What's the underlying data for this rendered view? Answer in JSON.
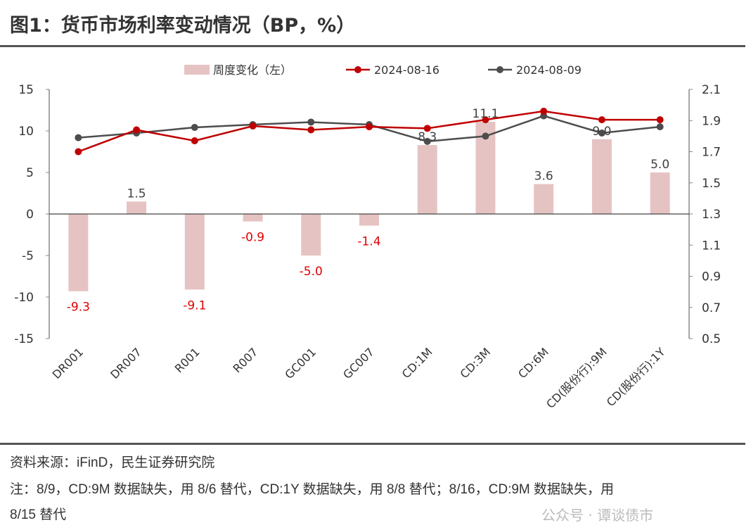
{
  "title": "图1：货币市场利率变动情况（BP，%）",
  "footer": {
    "source": "资料来源：iFinD，民生证券研究院",
    "note": "注：8/9，CD:9M 数据缺失，用 8/6 替代，CD:1Y 数据缺失，用 8/8 替代；8/16，CD:9M 数据缺失，用",
    "note2": "8/15 替代",
    "watermark": "公众号 · 谭谈债市"
  },
  "chart_data": {
    "type": "bar+line",
    "categories": [
      "DR001",
      "DR007",
      "R001",
      "R007",
      "GC001",
      "GC007",
      "CD:1M",
      "CD:3M",
      "CD:6M",
      "CD(股份行):9M",
      "CD(股份行):1Y"
    ],
    "left_axis": {
      "ylim": [
        -15,
        15
      ],
      "ticks": [
        15,
        10,
        5,
        0,
        -5,
        -10,
        -15
      ]
    },
    "right_axis": {
      "ylim": [
        0.5,
        2.1
      ],
      "ticks": [
        "2.1",
        "1.9",
        "1.7",
        "1.5",
        "1.3",
        "1.1",
        "0.9",
        "0.7",
        "0.5"
      ]
    },
    "legend_position": "top",
    "grid": false,
    "series": [
      {
        "name": "周度变化（左）",
        "type": "bar",
        "axis": "left",
        "color": "#e6c3c3",
        "values": [
          -9.3,
          1.5,
          -9.1,
          -0.9,
          -5.0,
          -1.4,
          8.3,
          11.1,
          3.6,
          9.0,
          5.0
        ]
      },
      {
        "name": "2024-08-16",
        "type": "line",
        "axis": "right",
        "color": "#c00000",
        "values": [
          1.7,
          1.84,
          1.77,
          1.865,
          1.84,
          1.86,
          1.85,
          1.905,
          1.96,
          1.905,
          1.905
        ]
      },
      {
        "name": "2024-08-09",
        "type": "line",
        "axis": "right",
        "color": "#4d4d4d",
        "values": [
          1.79,
          1.82,
          1.856,
          1.874,
          1.89,
          1.874,
          1.766,
          1.8,
          1.93,
          1.82,
          1.86
        ]
      }
    ],
    "label_colors": {
      "positive": "#404040",
      "negative": "#e00000"
    }
  }
}
